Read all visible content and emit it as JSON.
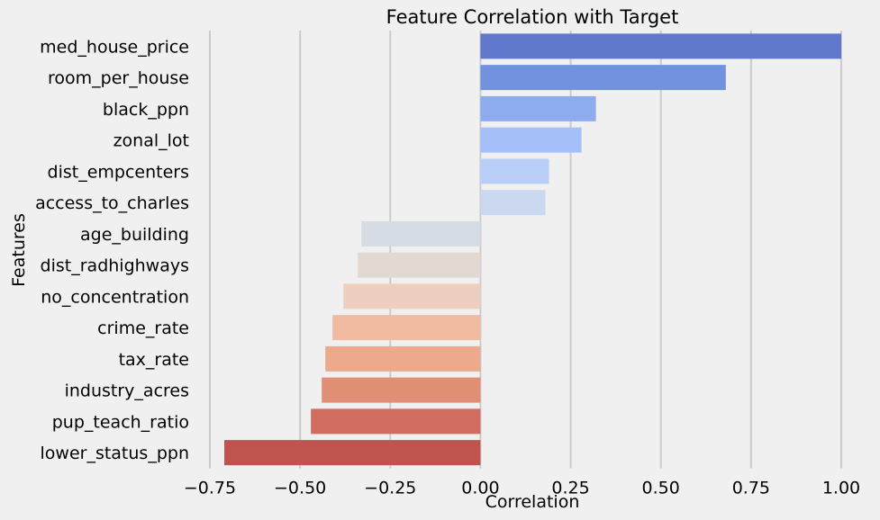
{
  "chart_data": {
    "type": "bar",
    "orientation": "horizontal",
    "title": "Feature Correlation with Target",
    "xlabel": "Correlation",
    "ylabel": "Features",
    "xlim": [
      -0.75,
      1.0
    ],
    "xticks": [
      -0.75,
      -0.5,
      -0.25,
      0.0,
      0.25,
      0.5,
      0.75,
      1.0
    ],
    "xtick_labels": [
      "−0.75",
      "−0.50",
      "−0.25",
      "0.00",
      "0.25",
      "0.50",
      "0.75",
      "1.00"
    ],
    "grid": "vertical gridlines",
    "categories": [
      "med_house_price",
      "room_per_house",
      "black_ppn",
      "zonal_lot",
      "dist_empcenters",
      "access_to_charles",
      "age_building",
      "dist_radhighways",
      "no_concentration",
      "crime_rate",
      "tax_rate",
      "industry_acres",
      "pup_teach_ratio",
      "lower_status_ppn"
    ],
    "values": [
      1.0,
      0.68,
      0.32,
      0.28,
      0.19,
      0.18,
      -0.33,
      -0.34,
      -0.38,
      -0.41,
      -0.43,
      -0.44,
      -0.47,
      -0.71
    ],
    "colors": [
      "#6078cc",
      "#7292e0",
      "#8eabee",
      "#a5c0f8",
      "#b9cff7",
      "#cad8f0",
      "#d6dce4",
      "#e3d9d3",
      "#edcfc0",
      "#f1bba1",
      "#eca98b",
      "#e08f75",
      "#d16d5f",
      "#bf5350"
    ],
    "background": "#f0f0f0",
    "grid_color": "#cbcbcb"
  }
}
